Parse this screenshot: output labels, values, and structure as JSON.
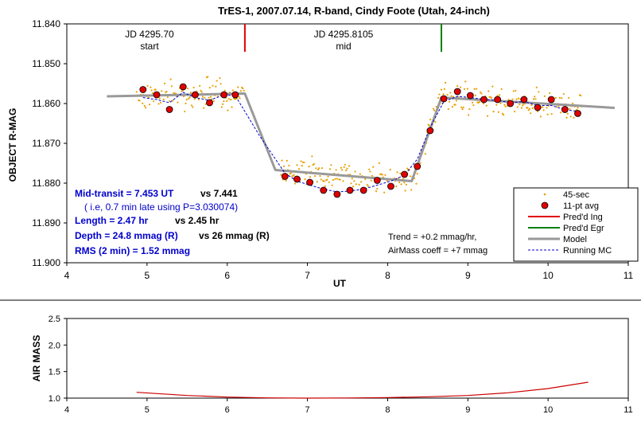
{
  "colors": {
    "obs": "#E8A000",
    "avg_fill": "#E00000",
    "avg_edge": "#000000",
    "ingress": "#E00000",
    "egress": "#008000",
    "model": "#999999",
    "running": "#0000CC",
    "airmass": "#CC0000",
    "blue_text": "#0000CC",
    "grid": "#000000"
  },
  "chart_data": [
    {
      "type": "scatter",
      "title": "TrES-1, 2007.07.14, R-band, Cindy Foote (Utah, 24-inch)",
      "xlabel": "UT",
      "ylabel": "OBJECT R-MAG",
      "xlim": [
        4,
        11
      ],
      "ylim": [
        11.84,
        11.9
      ],
      "y_inverted": true,
      "x_ticks": [
        "4",
        "5",
        "6",
        "7",
        "8",
        "9",
        "10",
        "11"
      ],
      "y_ticks": [
        "11.840",
        "11.850",
        "11.860",
        "11.870",
        "11.880",
        "11.890",
        "11.900"
      ],
      "grid": false,
      "legend_position": "bottom-right",
      "legend": [
        {
          "label": "45-sec",
          "marker": "dot"
        },
        {
          "label": "11-pt avg",
          "marker": "circle"
        },
        {
          "label": "Pred'd Ing",
          "marker": "red-line"
        },
        {
          "label": "Pred'd Egr",
          "marker": "green-line"
        },
        {
          "label": "Model",
          "marker": "gray-line"
        },
        {
          "label": "Running MC",
          "marker": "dashed-line"
        }
      ],
      "markers": [
        {
          "x": 6.22,
          "label_line1": "JD 4295.70",
          "label_line2": "start",
          "color": "red"
        },
        {
          "x": 8.67,
          "label_line1": "JD 4295.8105",
          "label_line2": "mid",
          "color": "green"
        }
      ],
      "annotations": {
        "mid_transit": "Mid-transit = 7.453 UT",
        "mid_transit_vs": "vs 7.441",
        "late_note": "( i.e,  0.7 min late using P=3.030074)",
        "length": "Length = 2.47 hr",
        "length_vs": "vs 2.45 hr",
        "depth": "Depth = 24.8 mmag (R)",
        "depth_vs": "vs 26 mmag (R)",
        "rms": "RMS (2 min) = 1.52 mmag",
        "trend": "Trend = +0.2 mmag/hr,",
        "airmass_coeff": "AirMass coeff = +7 mmag"
      },
      "series": [
        {
          "name": "11-pt avg",
          "x": [
            4.95,
            5.12,
            5.28,
            5.45,
            5.6,
            5.78,
            5.96,
            6.1,
            6.72,
            6.87,
            7.03,
            7.2,
            7.37,
            7.53,
            7.7,
            7.87,
            8.04,
            8.21,
            8.37,
            8.53,
            8.7,
            8.87,
            9.03,
            9.2,
            9.37,
            9.53,
            9.7,
            9.87,
            10.04,
            10.21,
            10.37
          ],
          "y": [
            11.8565,
            11.8578,
            11.8615,
            11.8558,
            11.8578,
            11.8598,
            11.8578,
            11.8578,
            11.8783,
            11.879,
            11.8798,
            11.8818,
            11.8828,
            11.8818,
            11.8818,
            11.8793,
            11.8808,
            11.8778,
            11.8758,
            11.8668,
            11.8588,
            11.857,
            11.858,
            11.859,
            11.859,
            11.86,
            11.859,
            11.861,
            11.859,
            11.8615,
            11.8625
          ]
        },
        {
          "name": "Model",
          "x": [
            4.5,
            6.22,
            6.6,
            8.3,
            8.67,
            10.83
          ],
          "y": [
            11.8582,
            11.8575,
            11.8767,
            11.8795,
            11.8585,
            11.8611
          ]
        },
        {
          "name": "Running MC",
          "x": [
            4.95,
            5.12,
            5.28,
            5.45,
            5.6,
            5.78,
            5.96,
            6.1,
            6.4,
            6.72,
            6.87,
            7.03,
            7.2,
            7.37,
            7.53,
            7.7,
            7.87,
            8.04,
            8.21,
            8.37,
            8.53,
            8.7,
            8.87,
            9.03,
            9.2,
            9.37,
            9.53,
            9.7,
            9.87,
            10.04,
            10.21,
            10.37
          ],
          "y": [
            11.8585,
            11.859,
            11.8598,
            11.8572,
            11.8585,
            11.8592,
            11.8578,
            11.858,
            11.868,
            11.8775,
            11.8795,
            11.8805,
            11.8815,
            11.8822,
            11.882,
            11.8815,
            11.8805,
            11.8795,
            11.878,
            11.874,
            11.866,
            11.8595,
            11.8582,
            11.8585,
            11.859,
            11.8592,
            11.8598,
            11.8595,
            11.8605,
            11.8605,
            11.8615,
            11.862
          ]
        }
      ]
    },
    {
      "type": "line",
      "ylabel": "AIR MASS",
      "xlim": [
        4,
        11
      ],
      "ylim": [
        1.0,
        2.5
      ],
      "x_ticks": [
        "4",
        "5",
        "6",
        "7",
        "8",
        "9",
        "10",
        "11"
      ],
      "y_ticks": [
        "1.0",
        "1.5",
        "2.0",
        "2.5"
      ],
      "series": [
        {
          "name": "",
          "x": [
            4.87,
            5.5,
            6.0,
            6.5,
            7.0,
            7.5,
            8.0,
            8.5,
            9.0,
            9.5,
            10.0,
            10.5
          ],
          "y": [
            1.11,
            1.05,
            1.02,
            1.005,
            1.0,
            1.003,
            1.01,
            1.025,
            1.05,
            1.1,
            1.18,
            1.3
          ]
        }
      ]
    }
  ]
}
